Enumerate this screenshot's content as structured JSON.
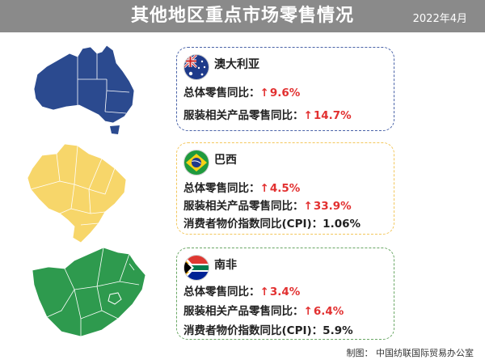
{
  "header": {
    "title": "其他地区重点市场零售情况",
    "date": "2022年4月"
  },
  "colors": {
    "australia_map": "#2b4a8f",
    "brazil_map": "#f7d66a",
    "south_africa_map": "#2e9a4e",
    "increase_red": "#e23030"
  },
  "markets": [
    {
      "country": "澳大利亚",
      "flag_icon": "australia-flag-icon",
      "total_label": "总体零售同比：",
      "total_value": "9.6%",
      "apparel_label": "服装相关产品零售同比：",
      "apparel_value": "14.7%"
    },
    {
      "country": "巴西",
      "flag_icon": "brazil-flag-icon",
      "total_label": "总体零售同比：",
      "total_value": "4.5%",
      "apparel_label": "服装相关产品零售同比：",
      "apparel_value": "33.9%",
      "cpi_label": "消费者物价指数同比(CPI)：",
      "cpi_value": "1.06%"
    },
    {
      "country": "南非",
      "flag_icon": "south-africa-flag-icon",
      "total_label": "总体零售同比：",
      "total_value": "3.4%",
      "apparel_label": "服装相关产品零售同比：",
      "apparel_value": "6.4%",
      "cpi_label": "消费者物价指数同比(CPI)：",
      "cpi_value": "5.9%"
    }
  ],
  "credit": "制图： 中国纺联国际贸易办公室",
  "symbols": {
    "up_arrow": "↑"
  }
}
